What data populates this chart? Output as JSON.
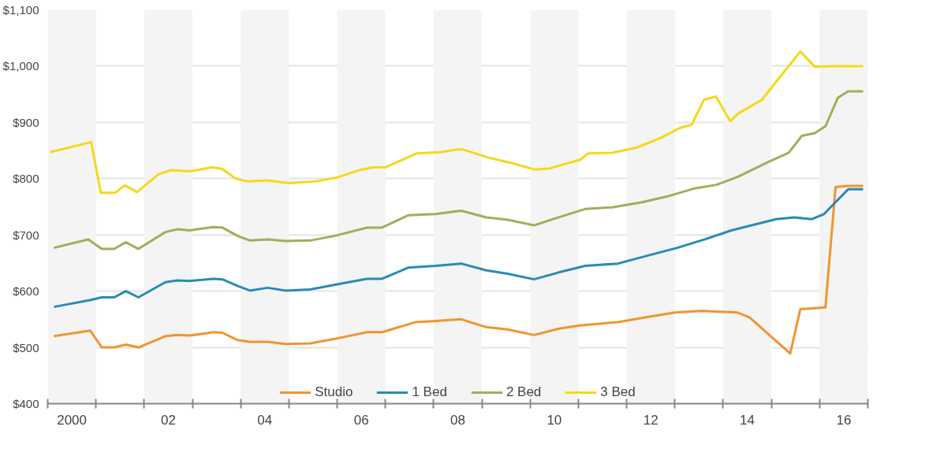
{
  "chart_data": {
    "type": "line",
    "xlim": [
      1999.5,
      2016.5
    ],
    "ylim": [
      400,
      1100
    ],
    "xticks": [
      {
        "value": 1999.5,
        "label": null
      },
      {
        "value": 2000.5,
        "label": null
      },
      {
        "value": 2001.5,
        "label": null
      },
      {
        "value": 2002.5,
        "label": null
      },
      {
        "value": 2003.5,
        "label": null
      },
      {
        "value": 2004.5,
        "label": null
      },
      {
        "value": 2005.5,
        "label": null
      },
      {
        "value": 2006.5,
        "label": null
      },
      {
        "value": 2007.5,
        "label": null
      },
      {
        "value": 2008.5,
        "label": null
      },
      {
        "value": 2009.5,
        "label": null
      },
      {
        "value": 2010.5,
        "label": null
      },
      {
        "value": 2011.5,
        "label": null
      },
      {
        "value": 2012.5,
        "label": null
      },
      {
        "value": 2013.5,
        "label": null
      },
      {
        "value": 2014.5,
        "label": null
      },
      {
        "value": 2015.5,
        "label": null
      },
      {
        "value": 2016.5,
        "label": null
      },
      2000,
      {
        "value": 2002,
        "label": "02"
      },
      {
        "value": 2004,
        "label": "04"
      },
      {
        "value": 2006,
        "label": "06"
      },
      {
        "value": 2008,
        "label": "08"
      },
      {
        "value": 2010,
        "label": "10"
      },
      {
        "value": 2012,
        "label": "12"
      },
      {
        "value": 2014,
        "label": "14"
      },
      {
        "value": 2016,
        "label": "16"
      }
    ],
    "yticks": [
      {
        "value": 400,
        "label": "$400"
      },
      {
        "value": 500,
        "label": "$500"
      },
      {
        "value": 600,
        "label": "$600"
      },
      {
        "value": 700,
        "label": "$700"
      },
      {
        "value": 800,
        "label": "$800"
      },
      {
        "value": 900,
        "label": "$900"
      },
      {
        "value": 1000,
        "label": "$1,000"
      },
      {
        "value": 1100,
        "label": "$1,100"
      }
    ],
    "grid": "y",
    "legend": "bottom",
    "line_style": "solid",
    "bands": [
      {
        "axis": "x",
        "from": 1999.5,
        "to": 2000.5,
        "color": "#f4f4f4"
      },
      {
        "axis": "x",
        "from": 2001.5,
        "to": 2002.5,
        "color": "#f4f4f4"
      },
      {
        "axis": "x",
        "from": 2003.5,
        "to": 2004.5,
        "color": "#f4f4f4"
      },
      {
        "axis": "x",
        "from": 2005.5,
        "to": 2006.5,
        "color": "#f4f4f4"
      },
      {
        "axis": "x",
        "from": 2007.5,
        "to": 2008.5,
        "color": "#f4f4f4"
      },
      {
        "axis": "x",
        "from": 2009.5,
        "to": 2010.5,
        "color": "#f4f4f4"
      },
      {
        "axis": "x",
        "from": 2011.5,
        "to": 2012.5,
        "color": "#f4f4f4"
      },
      {
        "axis": "x",
        "from": 2013.5,
        "to": 2014.5,
        "color": "#f4f4f4"
      },
      {
        "axis": "x",
        "from": 2015.5,
        "to": 2016.5,
        "color": "#f4f4f4"
      }
    ],
    "series": [
      {
        "name": "Studio",
        "color": "#f0952f",
        "x": [
          1999.63,
          2000.38,
          2000.62,
          2000.88,
          2001.12,
          2001.38,
          2001.94,
          2002.19,
          2002.44,
          2002.94,
          2003.12,
          2003.44,
          2003.69,
          2004.06,
          2004.43,
          2004.94,
          2005.5,
          2006.12,
          2006.43,
          2007.13,
          2007.54,
          2008.07,
          2008.59,
          2009.03,
          2009.58,
          2010.08,
          2010.52,
          2011.32,
          2011.93,
          2012.5,
          2013.05,
          2013.8,
          2014.05,
          2014.89,
          2015.1,
          2015.62,
          2015.83,
          2016.09,
          2016.4
        ],
        "values": [
          520,
          530,
          500,
          500,
          505,
          500,
          520,
          522,
          521,
          527,
          526,
          513,
          510,
          510,
          506,
          507,
          516,
          527,
          527,
          545,
          547,
          550,
          536,
          532,
          522,
          533,
          539,
          545,
          554,
          562,
          565,
          562,
          553,
          489,
          568,
          571,
          785,
          787,
          787
        ]
      },
      {
        "name": "1 Bed",
        "color": "#2a8bb4",
        "x": [
          1999.63,
          2000.38,
          2000.62,
          2000.88,
          2001.12,
          2001.38,
          2001.94,
          2002.19,
          2002.44,
          2002.94,
          2003.12,
          2003.44,
          2003.69,
          2004.06,
          2004.43,
          2004.94,
          2005.5,
          2006.12,
          2006.43,
          2006.98,
          2007.54,
          2008.07,
          2008.59,
          2009.03,
          2009.58,
          2010.08,
          2010.64,
          2011.32,
          2011.93,
          2012.55,
          2013.12,
          2013.67,
          2014.6,
          2014.97,
          2015.34,
          2015.59,
          2016.09,
          2016.4
        ],
        "values": [
          572,
          584,
          589,
          589,
          600,
          589,
          616,
          619,
          618,
          622,
          621,
          609,
          601,
          606,
          601,
          603,
          612,
          622,
          622,
          642,
          645,
          649,
          637,
          631,
          621,
          633,
          645,
          649,
          663,
          677,
          692,
          708,
          728,
          731,
          728,
          737,
          781,
          781
        ]
      },
      {
        "name": "2 Bed",
        "color": "#9db05a",
        "x": [
          1999.63,
          2000.34,
          2000.62,
          2000.88,
          2001.12,
          2001.38,
          2001.94,
          2002.19,
          2002.44,
          2002.94,
          2003.12,
          2003.44,
          2003.69,
          2004.06,
          2004.43,
          2004.94,
          2005.44,
          2006.12,
          2006.43,
          2006.98,
          2007.54,
          2008.07,
          2008.59,
          2009.03,
          2009.58,
          2010.08,
          2010.64,
          2011.2,
          2011.82,
          2012.37,
          2012.93,
          2013.36,
          2013.8,
          2014.42,
          2014.86,
          2015.13,
          2015.4,
          2015.62,
          2015.88,
          2016.09,
          2016.4
        ],
        "values": [
          677,
          692,
          675,
          675,
          687,
          675,
          705,
          710,
          708,
          714,
          713,
          698,
          690,
          692,
          689,
          690,
          698,
          713,
          713,
          735,
          737,
          743,
          731,
          727,
          717,
          731,
          746,
          749,
          758,
          769,
          783,
          789,
          803,
          829,
          846,
          876,
          881,
          893,
          944,
          955,
          955
        ]
      },
      {
        "name": "3 Bed",
        "color": "#f5d81a",
        "x": [
          1999.55,
          2000.4,
          2000.6,
          2000.9,
          2001.1,
          2001.35,
          2001.8,
          2002.05,
          2002.45,
          2002.9,
          2003.1,
          2003.4,
          2003.65,
          2004.05,
          2004.5,
          2005.05,
          2005.5,
          2005.95,
          2006.25,
          2006.5,
          2007.15,
          2007.65,
          2008.0,
          2008.1,
          2008.6,
          2009.1,
          2009.6,
          2009.9,
          2010.55,
          2010.7,
          2011.2,
          2011.7,
          2012.2,
          2012.6,
          2012.85,
          2013.1,
          2013.35,
          2013.65,
          2013.8,
          2014.3,
          2015.1,
          2015.4,
          2015.75,
          2016.4
        ],
        "values": [
          847,
          865,
          775,
          775,
          788,
          776,
          808,
          815,
          813,
          820,
          818,
          800,
          795,
          797,
          792,
          795,
          802,
          815,
          820,
          820,
          845,
          847,
          852,
          852,
          838,
          828,
          816,
          818,
          834,
          845,
          846,
          855,
          872,
          890,
          896,
          940,
          946,
          902,
          915,
          940,
          1026,
          999,
          1000,
          1000
        ]
      }
    ]
  }
}
